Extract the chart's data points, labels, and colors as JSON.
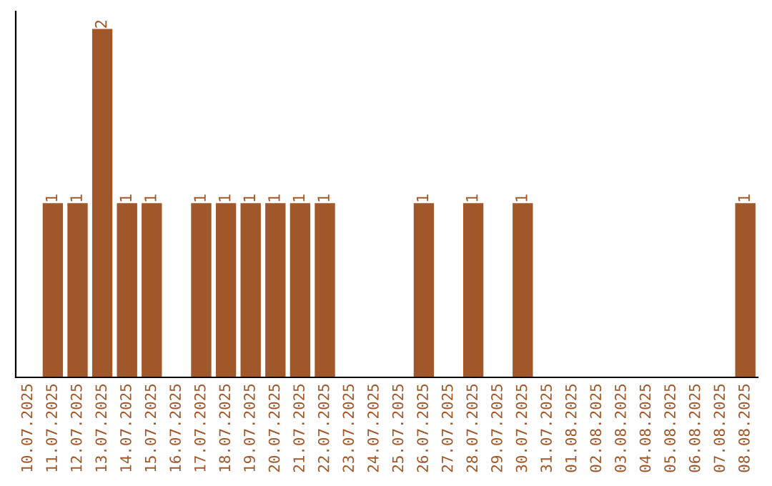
{
  "chart_data": {
    "type": "bar",
    "categories": [
      "10.07.2025",
      "11.07.2025",
      "12.07.2025",
      "13.07.2025",
      "14.07.2025",
      "15.07.2025",
      "16.07.2025",
      "17.07.2025",
      "18.07.2025",
      "19.07.2025",
      "20.07.2025",
      "21.07.2025",
      "22.07.2025",
      "23.07.2025",
      "24.07.2025",
      "25.07.2025",
      "26.07.2025",
      "27.07.2025",
      "28.07.2025",
      "29.07.2025",
      "30.07.2025",
      "31.07.2025",
      "01.08.2025",
      "02.08.2025",
      "03.08.2025",
      "04.08.2025",
      "05.08.2025",
      "06.08.2025",
      "07.08.2025",
      "08.08.2025"
    ],
    "values": [
      0,
      1,
      1,
      2,
      1,
      1,
      0,
      1,
      1,
      1,
      1,
      1,
      1,
      0,
      0,
      0,
      1,
      0,
      1,
      0,
      1,
      0,
      0,
      0,
      0,
      0,
      0,
      0,
      0,
      1
    ],
    "value_labels": [
      null,
      "1",
      "1",
      "2",
      "1",
      "1",
      null,
      "1",
      "1",
      "1",
      "1",
      "1",
      "1",
      null,
      null,
      null,
      "1",
      null,
      "1",
      null,
      "1",
      null,
      null,
      null,
      null,
      null,
      null,
      null,
      null,
      "1"
    ],
    "color": "#a0572a",
    "ylim": [
      0,
      2.1
    ],
    "tick_labels": "x",
    "grid": false,
    "legend": false
  }
}
